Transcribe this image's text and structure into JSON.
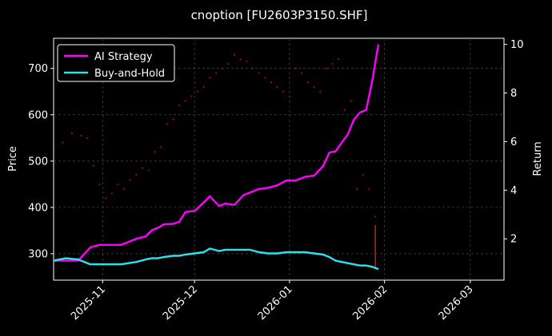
{
  "chart_data": {
    "type": "line",
    "title": "cnoption [FU2603P3150.SHF]",
    "xlabel": "",
    "ylabel": "Price",
    "ylabel_right": "Return",
    "x_ticks": [
      "2025-11",
      "2025-12",
      "2026-01",
      "2026-02",
      "2026-03"
    ],
    "y_ticks": [
      300,
      400,
      500,
      600,
      700
    ],
    "y_right_ticks": [
      2,
      4,
      6,
      8,
      10
    ],
    "xlim": [
      "2025-10-16",
      "2026-03-12"
    ],
    "ylim": [
      243,
      765
    ],
    "y_right_lim": [
      0.3,
      10.25
    ],
    "grid": true,
    "legend_position": "top-left",
    "background": "#000000",
    "series": [
      {
        "name": "AI Strategy",
        "axis": "right",
        "color": "#ff00ff",
        "x": [
          "2025-10-16",
          "2025-10-20",
          "2025-10-24",
          "2025-10-28",
          "2025-10-31",
          "2025-11-04",
          "2025-11-07",
          "2025-11-12",
          "2025-11-15",
          "2025-11-17",
          "2025-11-19",
          "2025-11-21",
          "2025-11-24",
          "2025-11-26",
          "2025-11-28",
          "2025-12-01",
          "2025-12-04",
          "2025-12-06",
          "2025-12-09",
          "2025-12-11",
          "2025-12-14",
          "2025-12-17",
          "2025-12-19",
          "2025-12-22",
          "2025-12-25",
          "2025-12-28",
          "2025-12-31",
          "2026-01-03",
          "2026-01-06",
          "2026-01-09",
          "2026-01-12",
          "2026-01-14",
          "2026-01-16",
          "2026-01-18",
          "2026-01-20",
          "2026-01-22",
          "2026-01-24",
          "2026-01-26",
          "2026-01-28",
          "2026-01-30"
        ],
        "values": [
          1.1,
          1.1,
          1.1,
          1.65,
          1.75,
          1.75,
          1.75,
          2.0,
          2.1,
          2.35,
          2.45,
          2.6,
          2.62,
          2.7,
          3.1,
          3.15,
          3.5,
          3.75,
          3.35,
          3.45,
          3.4,
          3.8,
          3.9,
          4.05,
          4.1,
          4.2,
          4.4,
          4.4,
          4.55,
          4.6,
          5.0,
          5.55,
          5.6,
          5.95,
          6.3,
          6.9,
          7.2,
          7.3,
          8.5,
          10.0
        ]
      },
      {
        "name": "Buy-and-Hold",
        "axis": "right",
        "color": "#29e4ee",
        "x": [
          "2025-10-16",
          "2025-10-20",
          "2025-10-24",
          "2025-10-28",
          "2025-10-31",
          "2025-11-04",
          "2025-11-07",
          "2025-11-12",
          "2025-11-15",
          "2025-11-17",
          "2025-11-19",
          "2025-11-21",
          "2025-11-24",
          "2025-11-26",
          "2025-11-28",
          "2025-12-01",
          "2025-12-04",
          "2025-12-06",
          "2025-12-09",
          "2025-12-11",
          "2025-12-14",
          "2025-12-17",
          "2025-12-19",
          "2025-12-22",
          "2025-12-25",
          "2025-12-28",
          "2025-12-31",
          "2026-01-03",
          "2026-01-06",
          "2026-01-09",
          "2026-01-12",
          "2026-01-14",
          "2026-01-16",
          "2026-01-18",
          "2026-01-20",
          "2026-01-22",
          "2026-01-24",
          "2026-01-26",
          "2026-01-28",
          "2026-01-30"
        ],
        "values": [
          1.1,
          1.2,
          1.15,
          0.95,
          0.95,
          0.95,
          0.95,
          1.05,
          1.15,
          1.2,
          1.2,
          1.25,
          1.3,
          1.3,
          1.35,
          1.4,
          1.45,
          1.6,
          1.5,
          1.55,
          1.55,
          1.55,
          1.55,
          1.45,
          1.4,
          1.4,
          1.45,
          1.45,
          1.45,
          1.4,
          1.35,
          1.25,
          1.1,
          1.05,
          1.0,
          0.95,
          0.9,
          0.9,
          0.85,
          0.75
        ]
      },
      {
        "name": "",
        "axis": "left",
        "type": "scatter",
        "color": "#b00020",
        "x": [
          "2025-10-19",
          "2025-10-22",
          "2025-10-25",
          "2025-10-27",
          "2025-10-29",
          "2025-10-31",
          "2025-11-02",
          "2025-11-04",
          "2025-11-06",
          "2025-11-08",
          "2025-11-10",
          "2025-11-12",
          "2025-11-14",
          "2025-11-16",
          "2025-11-18",
          "2025-11-20",
          "2025-11-22",
          "2025-11-24",
          "2025-11-26",
          "2025-11-28",
          "2025-11-30",
          "2025-12-02",
          "2025-12-04",
          "2025-12-06",
          "2025-12-08",
          "2025-12-10",
          "2025-12-12",
          "2025-12-14",
          "2025-12-16",
          "2025-12-18",
          "2025-12-20",
          "2025-12-22",
          "2025-12-24",
          "2025-12-26",
          "2025-12-28",
          "2025-12-30",
          "2026-01-01",
          "2026-01-03",
          "2026-01-05",
          "2026-01-07",
          "2026-01-09",
          "2026-01-11",
          "2026-01-13",
          "2026-01-15",
          "2026-01-17",
          "2026-01-19",
          "2026-01-21",
          "2026-01-23",
          "2026-01-25",
          "2026-01-27",
          "2026-01-29"
        ],
        "values": [
          540,
          560,
          555,
          550,
          490,
          450,
          420,
          430,
          450,
          440,
          460,
          470,
          485,
          480,
          520,
          530,
          580,
          590,
          620,
          630,
          640,
          650,
          660,
          680,
          690,
          700,
          710,
          730,
          720,
          715,
          700,
          690,
          680,
          670,
          660,
          650,
          640,
          700,
          690,
          670,
          660,
          650,
          700,
          710,
          720,
          610,
          630,
          440,
          470,
          440,
          380
        ]
      },
      {
        "name": "",
        "axis": "left",
        "type": "bar",
        "color": "#ff2020",
        "x": [
          "2026-01-29"
        ],
        "low": [
          270
        ],
        "high": [
          362
        ]
      }
    ],
    "legend": [
      "AI Strategy",
      "Buy-and-Hold"
    ]
  }
}
